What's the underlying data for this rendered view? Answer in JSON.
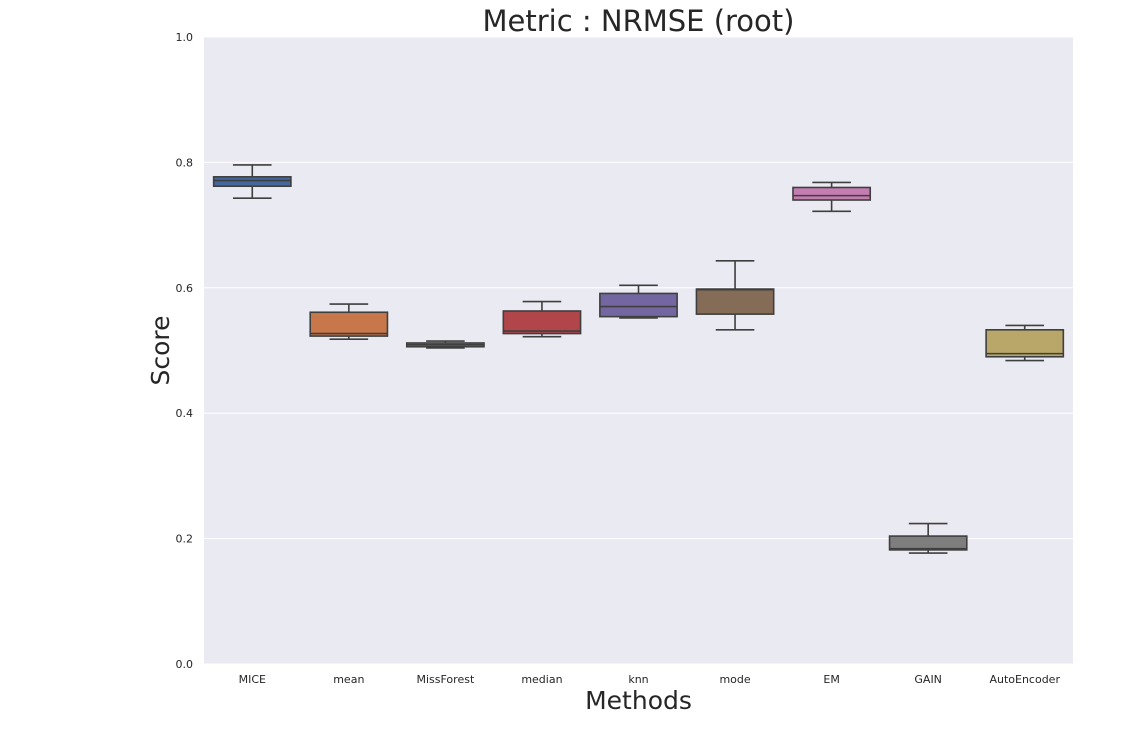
{
  "chart_data": {
    "type": "box",
    "title": "Metric : NRMSE (root)",
    "xlabel": "Methods",
    "ylabel": "Score",
    "ylim": [
      0.0,
      1.0
    ],
    "yticks": [
      "0.0",
      "0.2",
      "0.4",
      "0.6",
      "0.8",
      "1.0"
    ],
    "grid": true,
    "background_color": "#eaeaf2",
    "categories": [
      "MICE",
      "mean",
      "MissForest",
      "median",
      "knn",
      "mode",
      "EM",
      "GAIN",
      "AutoEncoder"
    ],
    "boxes": [
      {
        "category": "MICE",
        "whisker_low": 0.743,
        "q1": 0.762,
        "median": 0.771,
        "q3": 0.777,
        "whisker_high": 0.796,
        "color": "#4c72b0"
      },
      {
        "category": "mean",
        "whisker_low": 0.518,
        "q1": 0.523,
        "median": 0.527,
        "q3": 0.561,
        "whisker_high": 0.574,
        "color": "#dd8452"
      },
      {
        "category": "MissForest",
        "whisker_low": 0.504,
        "q1": 0.506,
        "median": 0.509,
        "q3": 0.512,
        "whisker_high": 0.515,
        "color": "#55a868"
      },
      {
        "category": "median",
        "whisker_low": 0.522,
        "q1": 0.527,
        "median": 0.531,
        "q3": 0.563,
        "whisker_high": 0.578,
        "color": "#c44e52"
      },
      {
        "category": "knn",
        "whisker_low": 0.552,
        "q1": 0.554,
        "median": 0.57,
        "q3": 0.591,
        "whisker_high": 0.604,
        "color": "#8172b3"
      },
      {
        "category": "mode",
        "whisker_low": 0.533,
        "q1": 0.558,
        "median": 0.597,
        "q3": 0.598,
        "whisker_high": 0.643,
        "color": "#937860"
      },
      {
        "category": "EM",
        "whisker_low": 0.722,
        "q1": 0.74,
        "median": 0.747,
        "q3": 0.76,
        "whisker_high": 0.768,
        "color": "#da8bc3"
      },
      {
        "category": "GAIN",
        "whisker_low": 0.177,
        "q1": 0.182,
        "median": 0.184,
        "q3": 0.204,
        "whisker_high": 0.224,
        "color": "#8c8c8c"
      },
      {
        "category": "AutoEncoder",
        "whisker_low": 0.484,
        "q1": 0.49,
        "median": 0.495,
        "q3": 0.533,
        "whisker_high": 0.54,
        "color": "#ccb974"
      }
    ]
  }
}
